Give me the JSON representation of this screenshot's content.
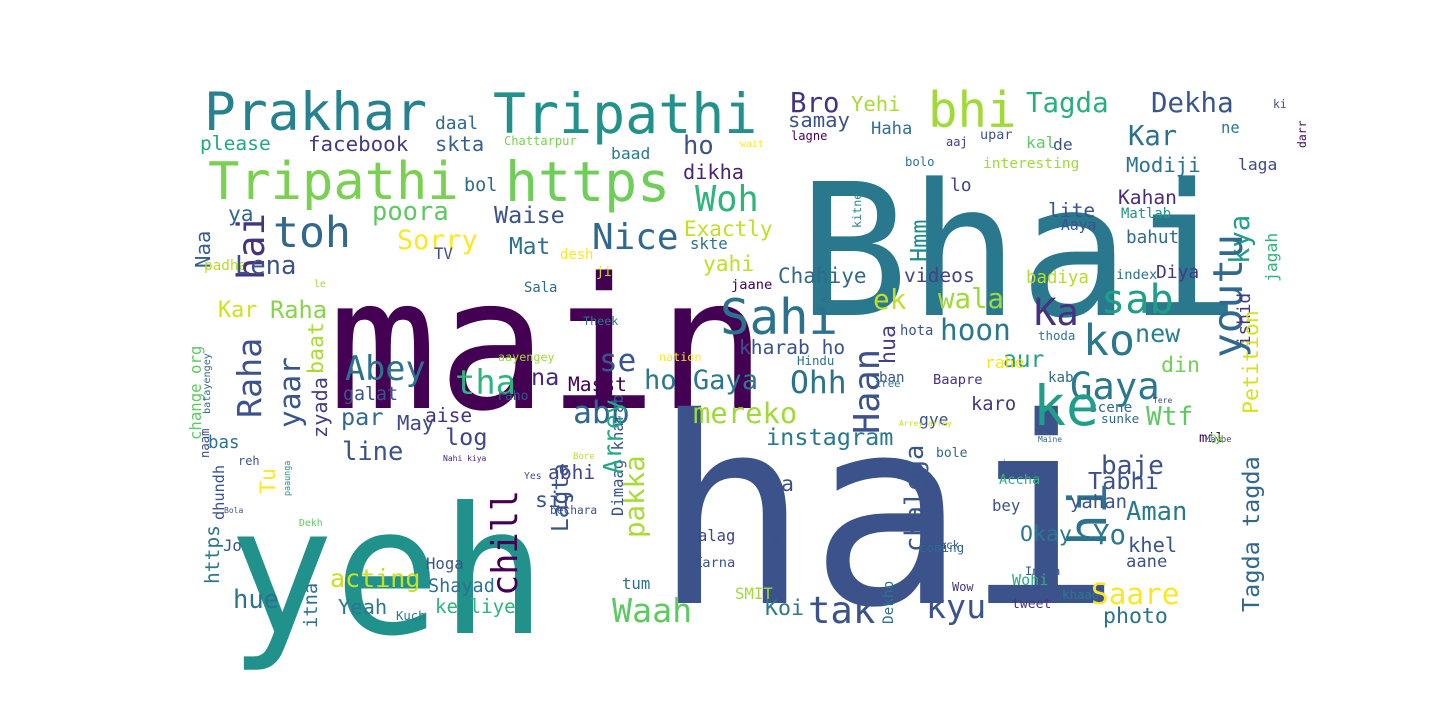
{
  "words": [
    {
      "text": "main",
      "color": "#440154"
    },
    {
      "text": "Bhai",
      "color": "#2a788e"
    },
    {
      "text": "hai",
      "color": "#3b528b"
    },
    {
      "text": "yeh",
      "color": "#21918c"
    },
    {
      "text": "Prakhar",
      "color": "#26828e"
    },
    {
      "text": "Tripathi",
      "color": "#21918c"
    },
    {
      "text": "Tripathi",
      "color": "#7ad151"
    },
    {
      "text": "https",
      "color": "#6ece58"
    },
    {
      "text": "bhi",
      "color": "#a0da39"
    },
    {
      "text": "Tagda",
      "color": "#29af7f"
    },
    {
      "text": "Dekha",
      "color": "#39568c"
    },
    {
      "text": "Bro",
      "color": "#46327e"
    },
    {
      "text": "Yehi",
      "color": "#a8db34"
    },
    {
      "text": "ki",
      "color": "#3e4a89"
    },
    {
      "text": "daal",
      "color": "#31688e"
    },
    {
      "text": "samay",
      "color": "#3b528b"
    },
    {
      "text": "Haha",
      "color": "#2c728e"
    },
    {
      "text": "please",
      "color": "#22a884"
    },
    {
      "text": "facebook",
      "color": "#443983"
    },
    {
      "text": "skta",
      "color": "#355f8d"
    },
    {
      "text": "Chattarpur",
      "color": "#7ad151"
    },
    {
      "text": "wait",
      "color": "#fde725"
    },
    {
      "text": "lagne",
      "color": "#440154"
    },
    {
      "text": "upar",
      "color": "#3b528b"
    },
    {
      "text": "ne",
      "color": "#2a788e"
    },
    {
      "text": "darr",
      "color": "#440154"
    },
    {
      "text": "Kar",
      "color": "#2c728e"
    },
    {
      "text": "aaj",
      "color": "#443983"
    },
    {
      "text": "kal",
      "color": "#5ec962"
    },
    {
      "text": "de",
      "color": "#3b528b"
    },
    {
      "text": "baad",
      "color": "#2a788e"
    },
    {
      "text": "ho",
      "color": "#3b528b"
    },
    {
      "text": "dikha",
      "color": "#482475"
    },
    {
      "text": "Modiji",
      "color": "#2c728e"
    },
    {
      "text": "laga",
      "color": "#3e4a89"
    },
    {
      "text": "bolo",
      "color": "#2c728e"
    },
    {
      "text": "interesting",
      "color": "#a0da39"
    },
    {
      "text": "bol",
      "color": "#31688e"
    },
    {
      "text": "Woh",
      "color": "#2fb47c"
    },
    {
      "text": "lo",
      "color": "#414487"
    },
    {
      "text": "Kahan",
      "color": "#472d7b"
    },
    {
      "text": "ya",
      "color": "#31688e"
    },
    {
      "text": "poora",
      "color": "#5ec962"
    },
    {
      "text": "Waise",
      "color": "#3b528b"
    },
    {
      "text": "toh",
      "color": "#31688e"
    },
    {
      "text": "Nice",
      "color": "#31688e"
    },
    {
      "text": "Sorry",
      "color": "#fde725"
    },
    {
      "text": "Mat",
      "color": "#2c728e"
    },
    {
      "text": "Exactly",
      "color": "#c2df23"
    },
    {
      "text": "kitne",
      "color": "#26828e"
    },
    {
      "text": "minute",
      "color": "#2a788e"
    },
    {
      "text": "lite",
      "color": "#3b528b"
    },
    {
      "text": "Matlab",
      "color": "#21918c"
    },
    {
      "text": "kya",
      "color": "#1f9e89"
    },
    {
      "text": "Aaya",
      "color": "#3b528b"
    },
    {
      "text": "Hmm",
      "color": "#228c8d"
    },
    {
      "text": "bahut",
      "color": "#31688e"
    },
    {
      "text": "Naa",
      "color": "#355f8d"
    },
    {
      "text": "TV",
      "color": "#3e4a89"
    },
    {
      "text": "desh",
      "color": "#fde725"
    },
    {
      "text": "skte",
      "color": "#2c728e"
    },
    {
      "text": "padha",
      "color": "#b5de2b"
    },
    {
      "text": "hai",
      "color": "#46327e"
    },
    {
      "text": "Lena",
      "color": "#3b528b"
    },
    {
      "text": "ji",
      "color": "#c8e020"
    },
    {
      "text": "yahi",
      "color": "#bddf26"
    },
    {
      "text": "Chahiye",
      "color": "#31688e"
    },
    {
      "text": "videos",
      "color": "#414487"
    },
    {
      "text": "Diya",
      "color": "#443983"
    },
    {
      "text": "badiya",
      "color": "#b5de2b"
    },
    {
      "text": "index",
      "color": "#2c728e"
    },
    {
      "text": "jagah",
      "color": "#2fb47c"
    },
    {
      "text": "le",
      "color": "#a0da39"
    },
    {
      "text": "Sala",
      "color": "#31688e"
    },
    {
      "text": "jaane",
      "color": "#440154"
    },
    {
      "text": "sab",
      "color": "#1f9e89"
    },
    {
      "text": "ek",
      "color": "#c2df23"
    },
    {
      "text": "wala",
      "color": "#a0da39"
    },
    {
      "text": "Kar",
      "color": "#d0e11c"
    },
    {
      "text": "Raha",
      "color": "#86d549"
    },
    {
      "text": "Sahi",
      "color": "#2c728e"
    },
    {
      "text": "Ka",
      "color": "#46327e"
    },
    {
      "text": "youtu",
      "color": "#31688e"
    },
    {
      "text": "ishid",
      "color": "#443983"
    },
    {
      "text": "Petition",
      "color": "#d8e219"
    },
    {
      "text": "Raha",
      "color": "#3b528b"
    },
    {
      "text": "hoon",
      "color": "#2a788e"
    },
    {
      "text": "new",
      "color": "#277f8e"
    },
    {
      "text": "ko",
      "color": "#2a788e"
    },
    {
      "text": "Theek",
      "color": "#2a788e"
    },
    {
      "text": "change org",
      "color": "#5ec962"
    },
    {
      "text": "baat",
      "color": "#a8db34"
    },
    {
      "text": "Haan",
      "color": "#3b528b"
    },
    {
      "text": "hua",
      "color": "#433e85"
    },
    {
      "text": "hota",
      "color": "#3b528b"
    },
    {
      "text": "thoda",
      "color": "#2a788e"
    },
    {
      "text": "se",
      "color": "#39568c"
    },
    {
      "text": "nation",
      "color": "#fde725"
    },
    {
      "text": "kharab ho",
      "color": "#3b528b"
    },
    {
      "text": "aur",
      "color": "#1f9e89"
    },
    {
      "text": "rahe",
      "color": "#f0e51c"
    },
    {
      "text": "din",
      "color": "#73d056"
    },
    {
      "text": "Abey",
      "color": "#2c728e"
    },
    {
      "text": "aayengey",
      "color": "#a0da39"
    },
    {
      "text": "Hindu",
      "color": "#2c728e"
    },
    {
      "text": "batayengey",
      "color": "#31688e"
    },
    {
      "text": "yaar",
      "color": "#39568c"
    },
    {
      "text": "tha",
      "color": "#2fb47c"
    },
    {
      "text": "na",
      "color": "#482878"
    },
    {
      "text": "ho Gaya",
      "color": "#2a788e"
    },
    {
      "text": "Ohh",
      "color": "#2c728e"
    },
    {
      "text": "ban",
      "color": "#39568c"
    },
    {
      "text": "Baapre",
      "color": "#46327e"
    },
    {
      "text": "Gaya",
      "color": "#2a788e"
    },
    {
      "text": "kab",
      "color": "#31688e"
    },
    {
      "text": "galat",
      "color": "#3b528b"
    },
    {
      "text": "Masst",
      "color": "#440154"
    },
    {
      "text": "tree",
      "color": "#2a788e"
    },
    {
      "text": "karo",
      "color": "#453781"
    },
    {
      "text": "raho",
      "color": "#3b528b"
    },
    {
      "text": "Tere",
      "color": "#3e4a89"
    },
    {
      "text": "par",
      "color": "#31688e"
    },
    {
      "text": "aise",
      "color": "#46327e"
    },
    {
      "text": "mereko",
      "color": "#a0da39"
    },
    {
      "text": "Wtf",
      "color": "#5ec962"
    },
    {
      "text": "scene",
      "color": "#31688e"
    },
    {
      "text": "zyada",
      "color": "#433e85"
    },
    {
      "text": "naam",
      "color": "#3e4a89"
    },
    {
      "text": "May",
      "color": "#3e4a89"
    },
    {
      "text": "gye",
      "color": "#3b528b"
    },
    {
      "text": "sunke",
      "color": "#31688e"
    },
    {
      "text": "abb",
      "color": "#31688e"
    },
    {
      "text": "log",
      "color": "#414487"
    },
    {
      "text": "Dimaag kharab",
      "color": "#3b528b"
    },
    {
      "text": "instagram",
      "color": "#2a788e"
    },
    {
      "text": "ke",
      "color": "#1f9e89"
    },
    {
      "text": "Tagda tagda",
      "color": "#31688e"
    },
    {
      "text": "bas",
      "color": "#2c728e"
    },
    {
      "text": "paaunga",
      "color": "#21918c"
    },
    {
      "text": "Arrey",
      "color": "#22a884"
    },
    {
      "text": "pakka",
      "color": "#a8db34"
    },
    {
      "text": "Arrey arrey",
      "color": "#c8e020"
    },
    {
      "text": "chalega",
      "color": "#39568c"
    },
    {
      "text": "mil",
      "color": "#440154"
    },
    {
      "text": "Maine",
      "color": "#31688e"
    },
    {
      "text": "Maybe",
      "color": "#3e4a89"
    },
    {
      "text": "Ok",
      "color": "#86d549"
    },
    {
      "text": "line",
      "color": "#3b528b"
    },
    {
      "text": "Bore",
      "color": "#c2df23"
    },
    {
      "text": "bole",
      "color": "#31688e"
    },
    {
      "text": "Tu",
      "color": "#fde725"
    },
    {
      "text": "Nahi kiya",
      "color": "#482475"
    },
    {
      "text": "reh",
      "color": "#3b528b"
    },
    {
      "text": "chill",
      "color": "#440154"
    },
    {
      "text": "abhi",
      "color": "#414487"
    },
    {
      "text": "Yes",
      "color": "#3b528b"
    },
    {
      "text": "baje",
      "color": "#3b528b"
    },
    {
      "text": "jaayega",
      "color": "#3b528b"
    },
    {
      "text": "Accha",
      "color": "#2fb47c"
    },
    {
      "text": "Tabhi",
      "color": "#3b528b"
    },
    {
      "text": "https",
      "color": "#2a788e"
    },
    {
      "text": "dhundh",
      "color": "#3b528b"
    },
    {
      "text": "hi",
      "color": "#2c728e"
    },
    {
      "text": "aa",
      "color": "#3b528b"
    },
    {
      "text": "yahan",
      "color": "#39568c"
    },
    {
      "text": "Bola",
      "color": "#3b528b"
    },
    {
      "text": "sir",
      "color": "#3b528b"
    },
    {
      "text": "Aman",
      "color": "#2a788e"
    },
    {
      "text": "Dekh",
      "color": "#5ec962"
    },
    {
      "text": "bechara",
      "color": "#3b528b"
    },
    {
      "text": "Lagta",
      "color": "#3b528b"
    },
    {
      "text": "bey",
      "color": "#3b528b"
    },
    {
      "text": "Okay",
      "color": "#2a788e"
    },
    {
      "text": "Yo",
      "color": "#2a788e"
    },
    {
      "text": "Jo",
      "color": "#3b528b"
    },
    {
      "text": "alag",
      "color": "#414487"
    },
    {
      "text": "Kaun",
      "color": "#3b528b"
    },
    {
      "text": "black",
      "color": "#3b528b"
    },
    {
      "text": "khel",
      "color": "#3b528b"
    },
    {
      "text": "coming",
      "color": "#31688e"
    },
    {
      "text": "aane",
      "color": "#3b528b"
    },
    {
      "text": "Hoga",
      "color": "#3b528b"
    },
    {
      "text": "India",
      "color": "#3b528b"
    },
    {
      "text": "acting",
      "color": "#c8e020"
    },
    {
      "text": "Shayad",
      "color": "#2c728e"
    },
    {
      "text": "Karna",
      "color": "#3b528b"
    },
    {
      "text": "tum",
      "color": "#2c728e"
    },
    {
      "text": "SMIT",
      "color": "#a0da39"
    },
    {
      "text": "Wow",
      "color": "#46327e"
    },
    {
      "text": "Wohi",
      "color": "#29af7f"
    },
    {
      "text": "itna",
      "color": "#2c728e"
    },
    {
      "text": "hue",
      "color": "#2c728e"
    },
    {
      "text": "Yeah",
      "color": "#2a788e"
    },
    {
      "text": "Kuch",
      "color": "#2a788e"
    },
    {
      "text": "ke liye",
      "color": "#2fb47c"
    },
    {
      "text": "tak",
      "color": "#3b528b"
    },
    {
      "text": "Waah",
      "color": "#5ec962"
    },
    {
      "text": "Koi",
      "color": "#2a788e"
    },
    {
      "text": "kyu",
      "color": "#3b528b"
    },
    {
      "text": "Dekho",
      "color": "#2c728e"
    },
    {
      "text": "khaao",
      "color": "#2a788e"
    },
    {
      "text": "Saare",
      "color": "#fde725"
    },
    {
      "text": "photo",
      "color": "#2c728e"
    },
    {
      "text": "tweet",
      "color": "#46327e"
    }
  ]
}
